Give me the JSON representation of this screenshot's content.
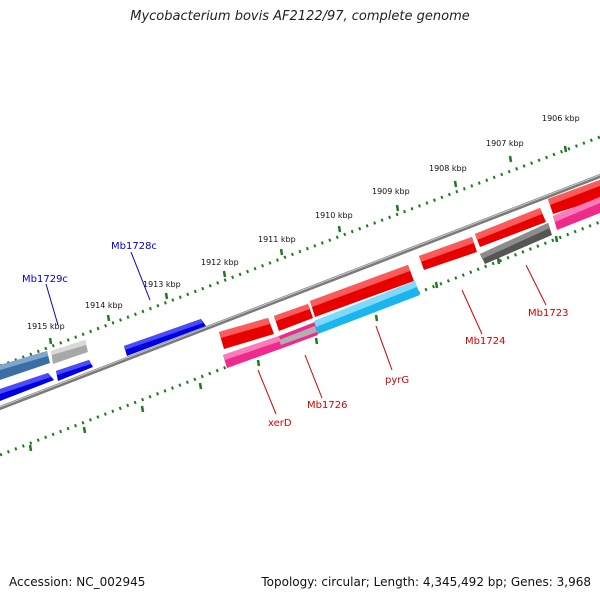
{
  "title": "Mycobacterium bovis AF2122/97, complete genome",
  "footer": {
    "accession": "Accession: NC_002945",
    "summary": "Topology: circular; Length: 4,345,492 bp; Genes: 3,968"
  },
  "colors": {
    "backbone": "#7a7a7a",
    "tick_ring": "#1f7a1f",
    "forward_gene": "#e60000",
    "forward_gene_magenta": "#ee2a8a",
    "reverse_gene": "#0000dd",
    "reverse_gene_steel": "#3b6fa3",
    "cds_cyan": "#19b6ee",
    "pseudo_gray": "#a8a8a8",
    "dark_gray": "#555555",
    "label_forward": "#d40000",
    "label_reverse": "#0000cc"
  },
  "scale_labels": [
    "1906 kbp",
    "1907 kbp",
    "1908 kbp",
    "1909 kbp",
    "1910 kbp",
    "1911 kbp",
    "1912 kbp",
    "1913 kbp",
    "1914 kbp",
    "1915 kbp"
  ],
  "gene_labels": {
    "reverse": [
      "Mb1728c",
      "Mb1729c"
    ],
    "forward": [
      "Mb1723",
      "Mb1724",
      "pyrG",
      "Mb1726",
      "xerD"
    ]
  }
}
